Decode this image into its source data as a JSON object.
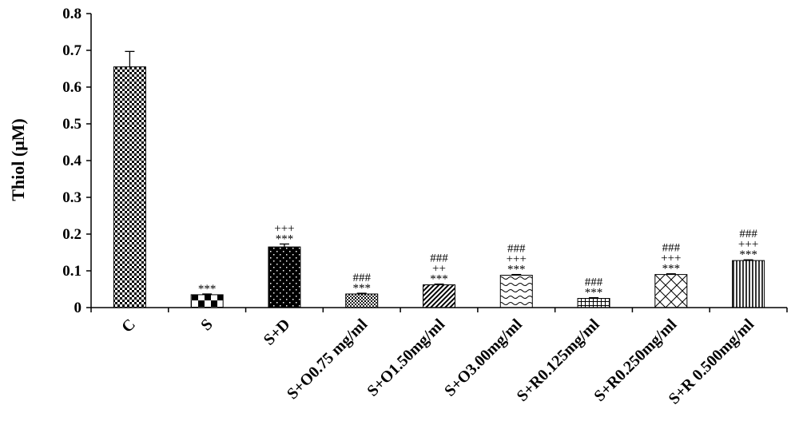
{
  "chart_data": {
    "type": "bar",
    "title": "",
    "xlabel": "",
    "ylabel": "Thiol (μM)",
    "ylim": [
      0,
      0.8
    ],
    "yticks": [
      "0",
      "0.1",
      "0.2",
      "0.3",
      "0.4",
      "0.5",
      "0.6",
      "0.7",
      "0.8"
    ],
    "grid": false,
    "legend": "none",
    "categories": [
      "C",
      "S",
      "S+D",
      "S+O0.75 mg/ml",
      "S+O1.50mg/ml",
      "S+O3.00mg/ml",
      "S+R0.125mg/ml",
      "S+R0.250mg/ml",
      "S+R 0.500mg/ml"
    ],
    "values": [
      0.655,
      0.035,
      0.165,
      0.037,
      0.062,
      0.088,
      0.025,
      0.09,
      0.128
    ],
    "errors": [
      0.042,
      0.002,
      0.008,
      0.002,
      0.002,
      0.002,
      0.002,
      0.002,
      0.002
    ],
    "patterns": [
      "fine-checker",
      "large-checker",
      "dots",
      "dense-dots",
      "diagonal",
      "waves",
      "grid",
      "diamond",
      "vertical"
    ],
    "annotations": [
      [],
      [
        "***"
      ],
      [
        "***",
        "+++"
      ],
      [
        "***",
        "###"
      ],
      [
        "***",
        "++",
        "###"
      ],
      [
        "***",
        "+++",
        "###"
      ],
      [
        "***",
        "###"
      ],
      [
        "***",
        "+++",
        "###"
      ],
      [
        "***",
        "+++",
        "###"
      ]
    ]
  }
}
